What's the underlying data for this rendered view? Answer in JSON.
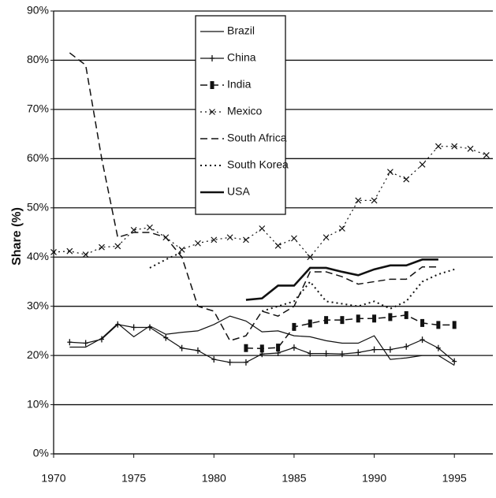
{
  "chart_data": {
    "type": "line",
    "y_label": "Share (%)",
    "x": [
      1970,
      1971,
      1972,
      1973,
      1974,
      1975,
      1976,
      1977,
      1978,
      1979,
      1980,
      1981,
      1982,
      1983,
      1984,
      1985,
      1986,
      1987,
      1988,
      1989,
      1990,
      1991,
      1992,
      1993,
      1994,
      1995,
      1996,
      1997
    ],
    "xlim": [
      1970,
      1997.4
    ],
    "xticks": [
      1970,
      1975,
      1980,
      1985,
      1990,
      1995
    ],
    "ylim": [
      0,
      90
    ],
    "yticks": [
      {
        "value": 0,
        "label": "0%"
      },
      {
        "value": 10,
        "label": "10%"
      },
      {
        "value": 20,
        "label": "20%"
      },
      {
        "value": 30,
        "label": "30%"
      },
      {
        "value": 40,
        "label": "40%"
      },
      {
        "value": 50,
        "label": "50%"
      },
      {
        "value": 60,
        "label": "60%"
      },
      {
        "value": 70,
        "label": "70%"
      },
      {
        "value": 80,
        "label": "80%"
      },
      {
        "value": 90,
        "label": "90%"
      }
    ],
    "grid": true,
    "legend": "top",
    "series": [
      {
        "name": "Brazil",
        "color": "#111111",
        "dash": "solid",
        "width": 1.2,
        "marker": "none",
        "values": [
          null,
          21.7,
          21.7,
          23.5,
          26.5,
          23.8,
          26,
          24.3,
          24.7,
          25,
          26.3,
          28,
          27,
          24.8,
          25,
          24,
          23.8,
          23,
          22.5,
          22.5,
          24,
          19.2,
          19.5,
          20,
          20,
          18,
          null,
          null
        ]
      },
      {
        "name": "China",
        "color": "#111111",
        "dash": "solid",
        "width": 1.2,
        "marker": "plus",
        "values": [
          null,
          22.7,
          22.5,
          23.3,
          26.3,
          25.7,
          25.7,
          23.6,
          21.5,
          21,
          19.2,
          18.6,
          18.6,
          20.3,
          20.5,
          21.6,
          20.4,
          20.4,
          20.3,
          20.6,
          21.2,
          21.2,
          21.8,
          23.2,
          21.5,
          18.8,
          null,
          null
        ]
      },
      {
        "name": "India",
        "color": "#111111",
        "dash": "dashed",
        "width": 1.5,
        "marker": "square",
        "values": [
          null,
          null,
          null,
          null,
          null,
          null,
          null,
          null,
          null,
          null,
          null,
          null,
          21.5,
          21.4,
          21.6,
          25.8,
          26.5,
          27.2,
          27.2,
          27.5,
          27.5,
          27.8,
          28.2,
          26.6,
          26.2,
          26.2,
          null,
          null
        ]
      },
      {
        "name": "Mexico",
        "color": "#111111",
        "dash": "dotted",
        "width": 1.2,
        "marker": "cross",
        "values": [
          41,
          41.2,
          40.5,
          42,
          42.2,
          45.5,
          46,
          44,
          41.5,
          42.8,
          43.5,
          44,
          43.5,
          45.8,
          42.3,
          43.8,
          40,
          44,
          45.8,
          51.5,
          51.5,
          57.3,
          55.8,
          58.8,
          62.5,
          62.5,
          62,
          60.7
        ]
      },
      {
        "name": "South Africa",
        "color": "#111111",
        "dash": "dashed",
        "width": 1.5,
        "marker": "none",
        "values": [
          null,
          81.5,
          79,
          60,
          44,
          45,
          45,
          44,
          40,
          30,
          29,
          23,
          24,
          29,
          28,
          30,
          37,
          37,
          36,
          34.5,
          35,
          35.5,
          35.5,
          38,
          38,
          null,
          null,
          null
        ]
      },
      {
        "name": "South Korea",
        "color": "#111111",
        "dash": "dotted",
        "width": 2,
        "marker": "none",
        "values": [
          null,
          null,
          null,
          null,
          null,
          null,
          37.8,
          39.5,
          41,
          null,
          null,
          null,
          null,
          29,
          30,
          31,
          35,
          31,
          30.5,
          30,
          31,
          29.5,
          31,
          35,
          36.5,
          37.5,
          null,
          null
        ]
      },
      {
        "name": "USA",
        "color": "#111111",
        "dash": "solid",
        "width": 2.6,
        "marker": "none",
        "values": [
          null,
          null,
          null,
          null,
          null,
          null,
          null,
          null,
          null,
          null,
          null,
          null,
          31.3,
          31.6,
          34.2,
          34.2,
          37.8,
          37.8,
          37,
          36.3,
          37.5,
          38.3,
          38.3,
          39.5,
          39.5,
          null,
          null,
          null
        ]
      }
    ]
  }
}
